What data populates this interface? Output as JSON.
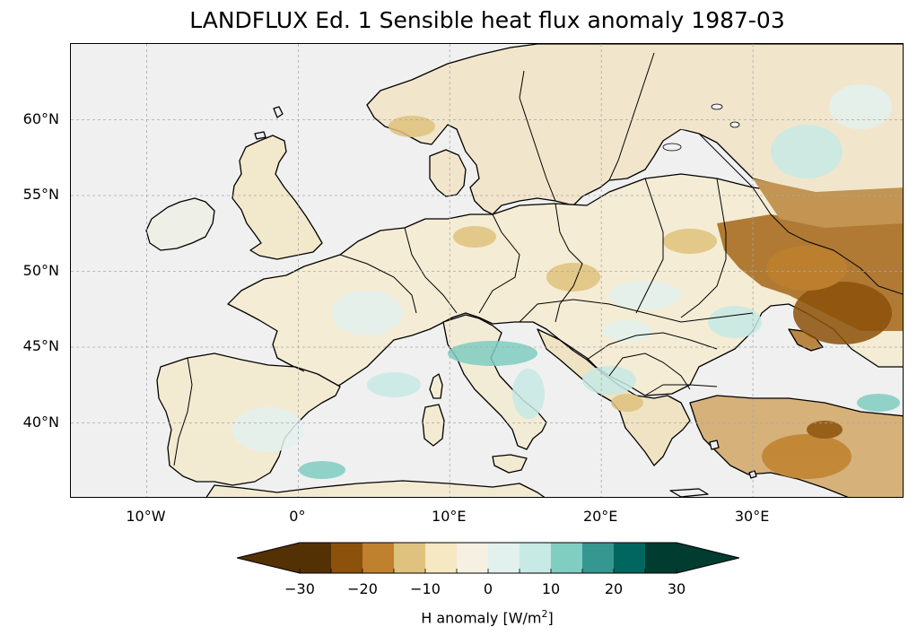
{
  "title": "LANDFLUX Ed. 1 Sensible heat flux anomaly 1987-03",
  "map": {
    "projection": "PlateCarree",
    "extent": {
      "lon_min": -15,
      "lon_max": 40,
      "lat_min": 35,
      "lat_max": 65
    },
    "gridlines": true,
    "colors": {
      "ocean": "#f0f0f0",
      "coast": "#000000",
      "grid": "#a8a8a8"
    },
    "lat_ticks": [
      {
        "value": 60,
        "label": "60°N"
      },
      {
        "value": 55,
        "label": "55°N"
      },
      {
        "value": 50,
        "label": "50°N"
      },
      {
        "value": 45,
        "label": "45°N"
      },
      {
        "value": 40,
        "label": "40°N"
      }
    ],
    "lon_ticks": [
      {
        "value": -10,
        "label": "10°W"
      },
      {
        "value": 0,
        "label": "0°"
      },
      {
        "value": 10,
        "label": "10°E"
      },
      {
        "value": 20,
        "label": "20°E"
      },
      {
        "value": 30,
        "label": "30°E"
      }
    ]
  },
  "colorbar": {
    "label_prefix": "H anomaly [W/m",
    "label_sup": "2",
    "label_suffix": "]",
    "extend": "both",
    "levels": [
      -30,
      -25,
      -20,
      -15,
      -10,
      -5,
      0,
      5,
      10,
      15,
      20,
      25,
      30
    ],
    "ticks": [
      {
        "value": -30,
        "label": "−30"
      },
      {
        "value": -20,
        "label": "−20"
      },
      {
        "value": -10,
        "label": "−10"
      },
      {
        "value": 0,
        "label": "0"
      },
      {
        "value": 10,
        "label": "10"
      },
      {
        "value": 20,
        "label": "20"
      },
      {
        "value": 30,
        "label": "30"
      }
    ],
    "colors": [
      "#543005",
      "#8c510a",
      "#bf812d",
      "#dfc27d",
      "#f6e8c3",
      "#f5f0e1",
      "#e3f1ee",
      "#c7eae5",
      "#80cdc1",
      "#35978f",
      "#01665e",
      "#003c30"
    ],
    "under_color": "#543005",
    "over_color": "#003c30"
  }
}
